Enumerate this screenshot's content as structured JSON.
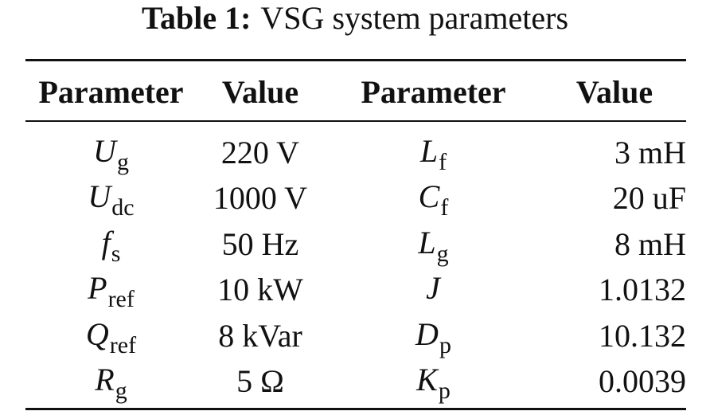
{
  "caption": {
    "label": "Table 1:",
    "text": "VSG system parameters"
  },
  "headers": [
    "Parameter",
    "Value",
    "Parameter",
    "Value"
  ],
  "rows": [
    {
      "p1": "U",
      "p1_sub": "g",
      "v1": "220 V",
      "p2": "L",
      "p2_sub": "f",
      "v2": "3 mH"
    },
    {
      "p1": "U",
      "p1_sub": "dc",
      "v1": "1000 V",
      "p2": "C",
      "p2_sub": "f",
      "v2": "20 uF"
    },
    {
      "p1": "f",
      "p1_sub": "s",
      "v1": "50 Hz",
      "p2": "L",
      "p2_sub": "g",
      "v2": "8 mH"
    },
    {
      "p1": "P",
      "p1_sub": "ref",
      "v1": "10 kW",
      "p2": "J",
      "p2_sub": "",
      "v2": "1.0132"
    },
    {
      "p1": "Q",
      "p1_sub": "ref",
      "v1": "8 kVar",
      "p2": "D",
      "p2_sub": "p",
      "v2": "10.132"
    },
    {
      "p1": "R",
      "p1_sub": "g",
      "v1": "5 Ω",
      "p2": "K",
      "p2_sub": "p",
      "v2": "0.0039"
    }
  ]
}
